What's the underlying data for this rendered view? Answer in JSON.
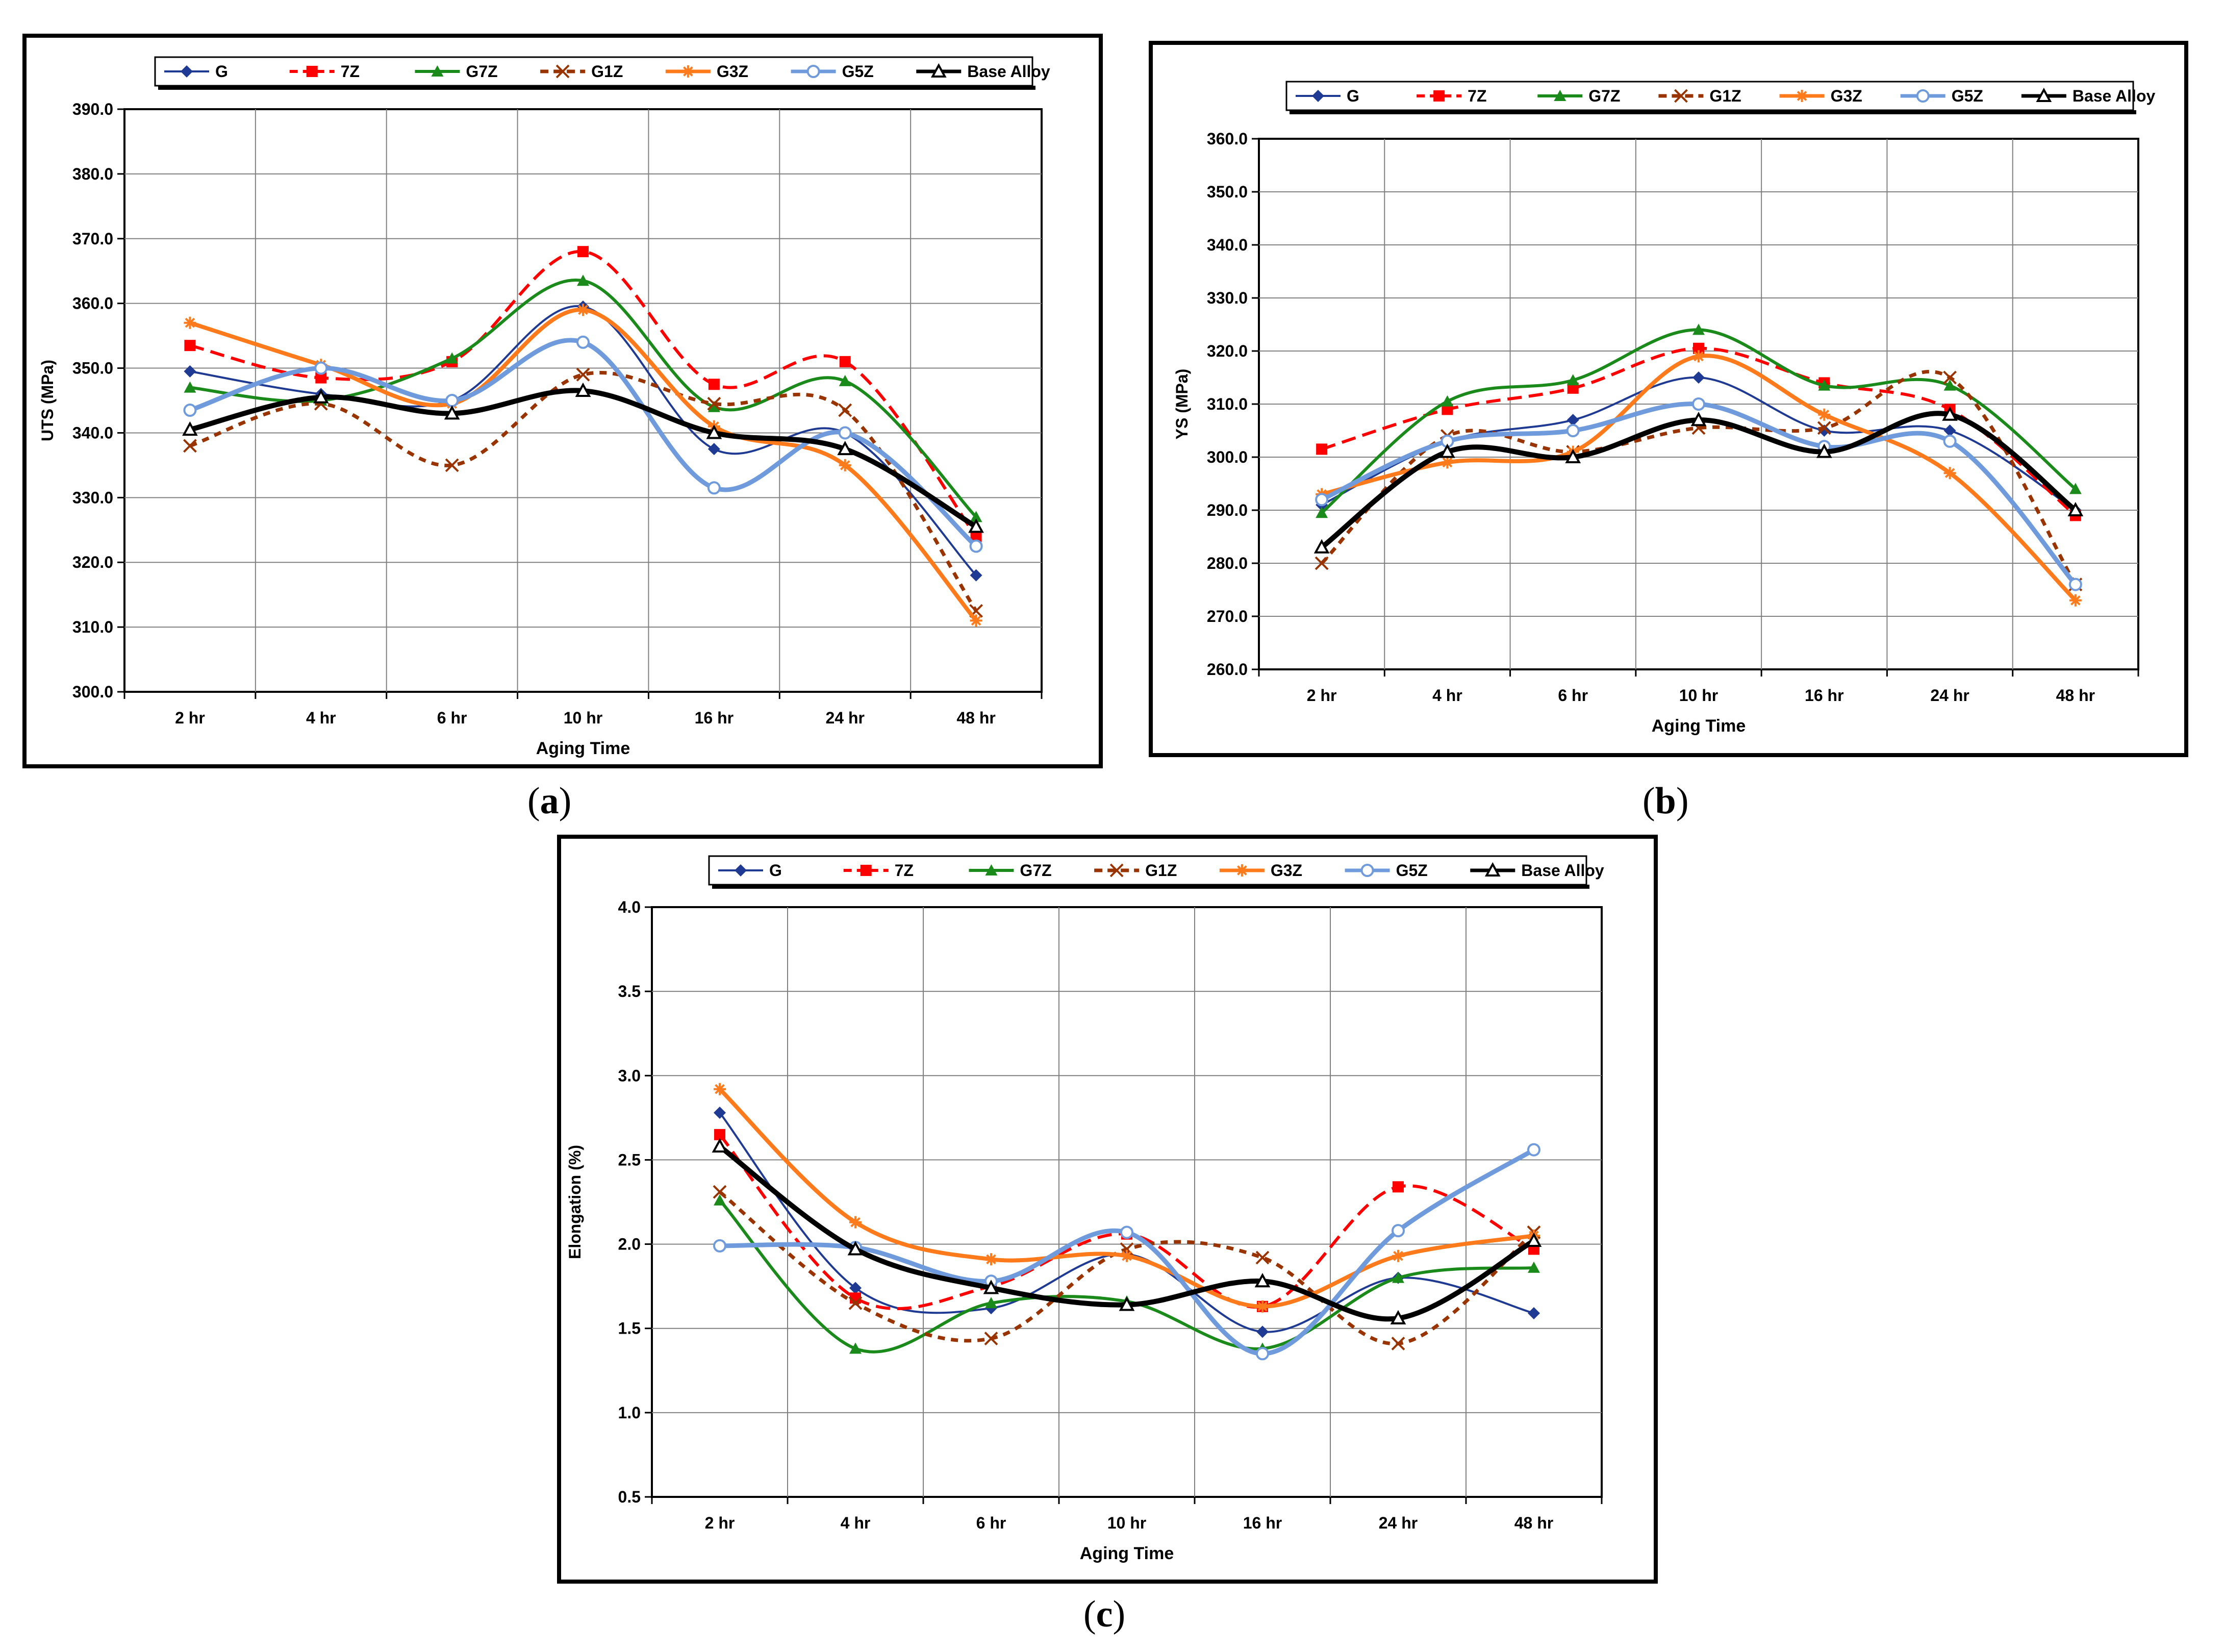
{
  "captions": {
    "a": "a",
    "b": "b",
    "c": "c"
  },
  "colors": {
    "G": "#1f3a93",
    "7Z": "#ff0000",
    "G7Z": "#1a8a1a",
    "G1Z": "#993300",
    "G3Z": "#ff7a1a",
    "G5Z": "#6f9bdc",
    "Base Alloy": "#000000"
  },
  "chart_data": [
    {
      "id": "a",
      "type": "line",
      "title": "",
      "xlabel": "Aging Time",
      "ylabel": "UTS (MPa)",
      "categories": [
        "2 hr",
        "4 hr",
        "6 hr",
        "10 hr",
        "16 hr",
        "24 hr",
        "48 hr"
      ],
      "ylim": [
        300.0,
        390.0
      ],
      "ytick_step": 10,
      "grid": true,
      "legend": "top",
      "series": [
        {
          "name": "G",
          "values": [
            349.5,
            346.0,
            345.0,
            359.5,
            337.5,
            340.0,
            318.0
          ]
        },
        {
          "name": "7Z",
          "values": [
            353.5,
            348.5,
            351.0,
            368.0,
            347.5,
            351.0,
            324.0
          ]
        },
        {
          "name": "G7Z",
          "values": [
            347.0,
            345.0,
            351.5,
            363.5,
            344.0,
            348.0,
            327.0
          ]
        },
        {
          "name": "G1Z",
          "values": [
            338.0,
            344.5,
            335.0,
            349.0,
            344.5,
            343.5,
            312.5
          ]
        },
        {
          "name": "G3Z",
          "values": [
            357.0,
            350.5,
            344.5,
            359.0,
            341.0,
            335.0,
            311.0
          ]
        },
        {
          "name": "G5Z",
          "values": [
            343.5,
            350.0,
            345.0,
            354.0,
            331.5,
            340.0,
            322.5
          ]
        },
        {
          "name": "Base Alloy",
          "values": [
            340.5,
            345.5,
            343.0,
            346.5,
            340.0,
            337.5,
            325.5
          ]
        }
      ]
    },
    {
      "id": "b",
      "type": "line",
      "title": "",
      "xlabel": "Aging Time",
      "ylabel": "YS (MPa)",
      "categories": [
        "2 hr",
        "4 hr",
        "6 hr",
        "10 hr",
        "16 hr",
        "24 hr",
        "48 hr"
      ],
      "ylim": [
        260.0,
        360.0
      ],
      "ytick_step": 10,
      "grid": true,
      "legend": "top",
      "series": [
        {
          "name": "G",
          "values": [
            291.0,
            303.0,
            307.0,
            315.0,
            305.0,
            305.0,
            290.0
          ]
        },
        {
          "name": "7Z",
          "values": [
            301.5,
            309.0,
            313.0,
            320.5,
            314.0,
            309.0,
            289.0
          ]
        },
        {
          "name": "G7Z",
          "values": [
            289.5,
            310.5,
            314.5,
            324.0,
            313.5,
            313.5,
            294.0
          ]
        },
        {
          "name": "G1Z",
          "values": [
            280.0,
            304.0,
            301.0,
            305.5,
            305.5,
            315.0,
            276.0
          ]
        },
        {
          "name": "G3Z",
          "values": [
            293.0,
            299.0,
            301.0,
            319.0,
            308.0,
            297.0,
            273.0
          ]
        },
        {
          "name": "G5Z",
          "values": [
            292.0,
            303.0,
            305.0,
            310.0,
            302.0,
            303.0,
            276.0
          ]
        },
        {
          "name": "Base Alloy",
          "values": [
            283.0,
            301.0,
            300.0,
            307.0,
            301.0,
            308.0,
            290.0
          ]
        }
      ]
    },
    {
      "id": "c",
      "type": "line",
      "title": "",
      "xlabel": "Aging Time",
      "ylabel": "Elongation (%)",
      "categories": [
        "2 hr",
        "4 hr",
        "6 hr",
        "10 hr",
        "16 hr",
        "24 hr",
        "48 hr"
      ],
      "ylim": [
        0.5,
        4.0
      ],
      "ytick_step": 0.5,
      "grid": true,
      "legend": "top",
      "series": [
        {
          "name": "G",
          "values": [
            2.78,
            1.74,
            1.62,
            1.94,
            1.48,
            1.8,
            1.59
          ]
        },
        {
          "name": "7Z",
          "values": [
            2.65,
            1.68,
            1.75,
            2.06,
            1.63,
            2.34,
            1.97
          ]
        },
        {
          "name": "G7Z",
          "values": [
            2.26,
            1.38,
            1.65,
            1.66,
            1.38,
            1.8,
            1.86
          ]
        },
        {
          "name": "G1Z",
          "values": [
            2.31,
            1.65,
            1.44,
            1.97,
            1.92,
            1.41,
            2.07
          ]
        },
        {
          "name": "G3Z",
          "values": [
            2.92,
            2.13,
            1.91,
            1.93,
            1.63,
            1.93,
            2.05
          ]
        },
        {
          "name": "G5Z",
          "values": [
            1.99,
            1.98,
            1.78,
            2.07,
            1.35,
            2.08,
            2.56
          ]
        },
        {
          "name": "Base Alloy",
          "values": [
            2.58,
            1.97,
            1.74,
            1.64,
            1.78,
            1.56,
            2.02
          ]
        }
      ]
    }
  ]
}
